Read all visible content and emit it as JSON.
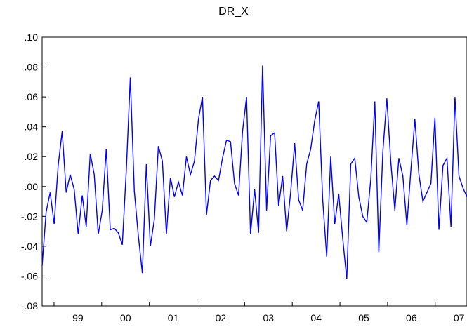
{
  "chart_data": {
    "type": "line",
    "title": "DR_X",
    "xlabel": "",
    "ylabel": "",
    "ylim": [
      -0.08,
      0.1
    ],
    "yticks": [
      ".10",
      ".08",
      ".06",
      ".04",
      ".02",
      ".00",
      "-.02",
      "-.04",
      "-.06",
      "-.08"
    ],
    "ytick_values": [
      0.1,
      0.08,
      0.06,
      0.04,
      0.02,
      0.0,
      -0.02,
      -0.04,
      -0.06,
      -0.08
    ],
    "xtick_labels": [
      "99",
      "00",
      "01",
      "02",
      "03",
      "04",
      "05",
      "06",
      "07"
    ],
    "x_start_year": 1998.75,
    "x_end_year": 2007.6667,
    "grid": false,
    "line_color": "#0000ff",
    "series": [
      {
        "values": [
          -0.053,
          -0.017,
          -0.004,
          -0.025,
          0.014,
          0.037,
          -0.004,
          0.008,
          -0.002,
          -0.032,
          -0.006,
          -0.027,
          0.022,
          0.008,
          -0.032,
          -0.016,
          0.025,
          -0.029,
          -0.028,
          -0.031,
          -0.039,
          0.011,
          0.073,
          -0.003,
          -0.033,
          -0.058,
          0.015,
          -0.04,
          -0.022,
          0.027,
          0.017,
          -0.032,
          0.006,
          -0.007,
          0.003,
          -0.006,
          0.02,
          0.008,
          0.017,
          0.045,
          0.06,
          -0.019,
          0.004,
          0.007,
          0.004,
          0.019,
          0.031,
          0.03,
          0.002,
          -0.006,
          0.037,
          0.06,
          -0.032,
          -0.002,
          -0.031,
          0.081,
          -0.016,
          0.034,
          0.036,
          -0.013,
          0.007,
          -0.03,
          -0.004,
          0.029,
          -0.009,
          -0.016,
          0.015,
          0.025,
          0.044,
          0.057,
          -0.009,
          -0.047,
          0.02,
          -0.025,
          -0.005,
          -0.035,
          -0.062,
          0.015,
          0.019,
          -0.007,
          -0.02,
          -0.024,
          0.005,
          0.057,
          -0.044,
          0.023,
          0.059,
          0.016,
          -0.016,
          0.019,
          0.007,
          -0.026,
          0.011,
          0.045,
          0.008,
          -0.01,
          -0.004,
          0.002,
          0.046,
          -0.029,
          0.014,
          0.019,
          -0.027,
          0.06,
          0.007,
          -0.001,
          -0.007
        ]
      }
    ]
  }
}
